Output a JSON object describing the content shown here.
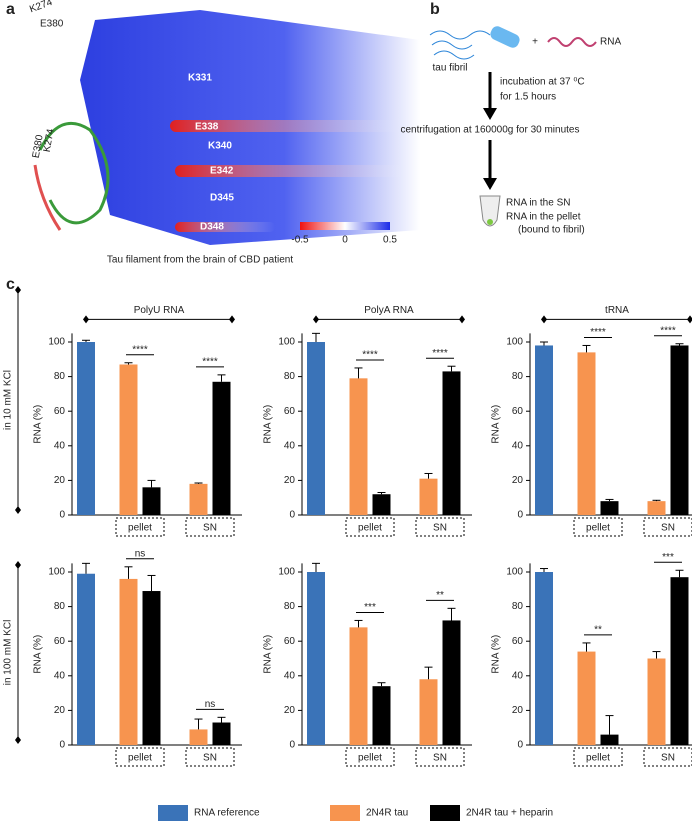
{
  "panel_a": {
    "label": "a",
    "caption": "Tau filament from the brain of CBD patient",
    "residues": [
      "K274",
      "E380",
      "K331",
      "E338",
      "K340",
      "E342",
      "D345",
      "D348"
    ],
    "inset_labels": [
      "E380",
      "K274"
    ],
    "colorbar_ticks": [
      -0.5,
      0,
      0.5
    ]
  },
  "panel_b": {
    "label": "b",
    "fibril": "tau fibril",
    "plus": "+",
    "rna": "RNA",
    "step1": [
      "incubation at 37 ⁰C",
      "for 1.5 hours"
    ],
    "step2": "centrifugation at 160000g for 30 minutes",
    "outcomes": [
      "RNA in the SN",
      "RNA in the pellet",
      "(bound to fibril)"
    ]
  },
  "panel_c": {
    "label": "c",
    "row_labels": [
      "in 10 mM KCl",
      "in 100 mM KCl"
    ],
    "legend": [
      {
        "name": "RNA reference",
        "color": "#3a73b8"
      },
      {
        "name": "2N4R tau",
        "color": "#f7944f"
      },
      {
        "name": "2N4R tau + heparin",
        "color": "#000000"
      }
    ]
  },
  "chart_data": [
    {
      "type": "bar",
      "title": "PolyU RNA",
      "ylabel": "RNA (%)",
      "categories": [
        null,
        "pellet",
        "SN"
      ],
      "ylim": [
        0,
        105
      ],
      "yticks": [
        0,
        20,
        40,
        60,
        80,
        100
      ],
      "series": [
        {
          "values": [
            100,
            null,
            null
          ],
          "errors": [
            1,
            null,
            null
          ]
        },
        {
          "values": [
            null,
            87,
            18
          ],
          "errors": [
            null,
            1,
            0.5
          ]
        },
        {
          "values": [
            null,
            16,
            77
          ],
          "errors": [
            null,
            4,
            4
          ]
        }
      ],
      "significance": [
        null,
        "****",
        "****"
      ]
    },
    {
      "type": "bar",
      "title": "PolyA RNA",
      "ylabel": "RNA (%)",
      "categories": [
        null,
        "pellet",
        "SN"
      ],
      "ylim": [
        0,
        105
      ],
      "yticks": [
        0,
        20,
        40,
        60,
        80,
        100
      ],
      "series": [
        {
          "values": [
            100,
            null,
            null
          ],
          "errors": [
            5,
            null,
            null
          ]
        },
        {
          "values": [
            null,
            79,
            21
          ],
          "errors": [
            null,
            6,
            3
          ]
        },
        {
          "values": [
            null,
            12,
            83
          ],
          "errors": [
            null,
            1,
            3
          ]
        }
      ],
      "significance": [
        null,
        "****",
        "****"
      ]
    },
    {
      "type": "bar",
      "title": "tRNA",
      "ylabel": "RNA (%)",
      "categories": [
        null,
        "pellet",
        "SN"
      ],
      "ylim": [
        0,
        105
      ],
      "yticks": [
        0,
        20,
        40,
        60,
        80,
        100
      ],
      "series": [
        {
          "values": [
            98,
            null,
            null
          ],
          "errors": [
            2,
            null,
            null
          ]
        },
        {
          "values": [
            null,
            94,
            8
          ],
          "errors": [
            null,
            4,
            0.5
          ]
        },
        {
          "values": [
            null,
            8,
            98
          ],
          "errors": [
            null,
            1,
            1
          ]
        }
      ],
      "significance": [
        null,
        "****",
        "****"
      ]
    },
    {
      "type": "bar",
      "ylabel": "RNA (%)",
      "categories": [
        null,
        "pellet",
        "SN"
      ],
      "ylim": [
        0,
        105
      ],
      "yticks": [
        0,
        20,
        40,
        60,
        80,
        100
      ],
      "series": [
        {
          "values": [
            99,
            null,
            null
          ],
          "errors": [
            6,
            null,
            null
          ]
        },
        {
          "values": [
            null,
            96,
            9
          ],
          "errors": [
            null,
            7,
            6
          ]
        },
        {
          "values": [
            null,
            89,
            13
          ],
          "errors": [
            null,
            9,
            3
          ]
        }
      ],
      "significance": [
        null,
        "ns",
        "ns"
      ]
    },
    {
      "type": "bar",
      "ylabel": "RNA (%)",
      "categories": [
        null,
        "pellet",
        "SN"
      ],
      "ylim": [
        0,
        105
      ],
      "yticks": [
        0,
        20,
        40,
        60,
        80,
        100
      ],
      "series": [
        {
          "values": [
            100,
            null,
            null
          ],
          "errors": [
            5,
            null,
            null
          ]
        },
        {
          "values": [
            null,
            68,
            38
          ],
          "errors": [
            null,
            4,
            7
          ]
        },
        {
          "values": [
            null,
            34,
            72
          ],
          "errors": [
            null,
            2,
            7
          ]
        }
      ],
      "significance": [
        null,
        "***",
        "**"
      ]
    },
    {
      "type": "bar",
      "ylabel": "RNA (%)",
      "categories": [
        null,
        "pellet",
        "SN"
      ],
      "ylim": [
        0,
        105
      ],
      "yticks": [
        0,
        20,
        40,
        60,
        80,
        100
      ],
      "series": [
        {
          "values": [
            100,
            null,
            null
          ],
          "errors": [
            2,
            null,
            null
          ]
        },
        {
          "values": [
            null,
            54,
            50
          ],
          "errors": [
            null,
            5,
            4
          ]
        },
        {
          "values": [
            null,
            6,
            97
          ],
          "errors": [
            null,
            11,
            4
          ]
        }
      ],
      "significance": [
        null,
        "**",
        "***"
      ]
    }
  ]
}
